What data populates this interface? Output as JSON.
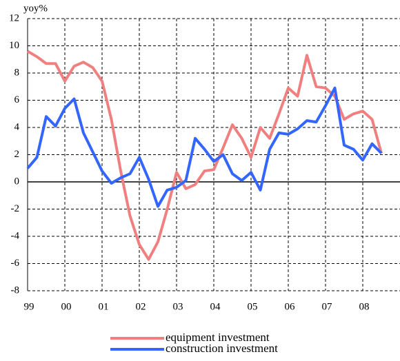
{
  "chart_data": {
    "type": "line",
    "ylabel": "yoy%",
    "x": [
      1999,
      1999.25,
      1999.5,
      1999.75,
      2000,
      2000.25,
      2000.5,
      2000.75,
      2001,
      2001.25,
      2001.5,
      2001.75,
      2002,
      2002.25,
      2002.5,
      2002.75,
      2003,
      2003.25,
      2003.5,
      2003.75,
      2004,
      2004.25,
      2004.5,
      2004.75,
      2005,
      2005.25,
      2005.5,
      2005.75,
      2006,
      2006.25,
      2006.5,
      2006.75,
      2007,
      2007.25,
      2007.5,
      2007.75,
      2008,
      2008.25,
      2008.5
    ],
    "series": [
      {
        "name": "equipment investment",
        "color": "#f08080",
        "text_color": "#e00000",
        "values": [
          9.6,
          9.2,
          8.7,
          8.7,
          7.4,
          8.5,
          8.8,
          8.4,
          7.4,
          4.6,
          0.8,
          -2.5,
          -4.6,
          -5.7,
          -4.4,
          -2.0,
          0.7,
          -0.5,
          -0.2,
          0.8,
          0.9,
          2.5,
          4.2,
          3.2,
          1.8,
          4.0,
          3.2,
          5.0,
          6.9,
          6.3,
          9.3,
          7.0,
          6.9,
          6.3,
          4.6,
          5.0,
          5.2,
          4.6,
          2.1
        ]
      },
      {
        "name": "construction investment",
        "color": "#3366ff",
        "text_color": "#3333ff",
        "values": [
          1.0,
          1.8,
          4.8,
          4.1,
          5.4,
          6.1,
          3.6,
          2.2,
          0.8,
          -0.1,
          0.3,
          0.6,
          1.8,
          0.2,
          -1.8,
          -0.6,
          -0.4,
          0.1,
          3.2,
          2.4,
          1.5,
          2.0,
          0.6,
          0.1,
          0.7,
          -0.6,
          2.4,
          3.6,
          3.5,
          3.9,
          4.5,
          4.4,
          5.6,
          6.9,
          2.7,
          2.4,
          1.6,
          2.8,
          2.1
        ]
      }
    ],
    "xlim": [
      1999,
      2009
    ],
    "xticks": [
      {
        "value": 1999,
        "label": "99"
      },
      {
        "value": 2000,
        "label": "00"
      },
      {
        "value": 2001,
        "label": "01"
      },
      {
        "value": 2002,
        "label": "02"
      },
      {
        "value": 2003,
        "label": "03"
      },
      {
        "value": 2004,
        "label": "04"
      },
      {
        "value": 2005,
        "label": "05"
      },
      {
        "value": 2006,
        "label": "06"
      },
      {
        "value": 2007,
        "label": "07"
      },
      {
        "value": 2008,
        "label": "08"
      }
    ],
    "ylim": [
      -8,
      12
    ],
    "yticks": [
      -8,
      -6,
      -4,
      -2,
      0,
      2,
      4,
      6,
      8,
      10,
      12
    ],
    "grid": true
  }
}
